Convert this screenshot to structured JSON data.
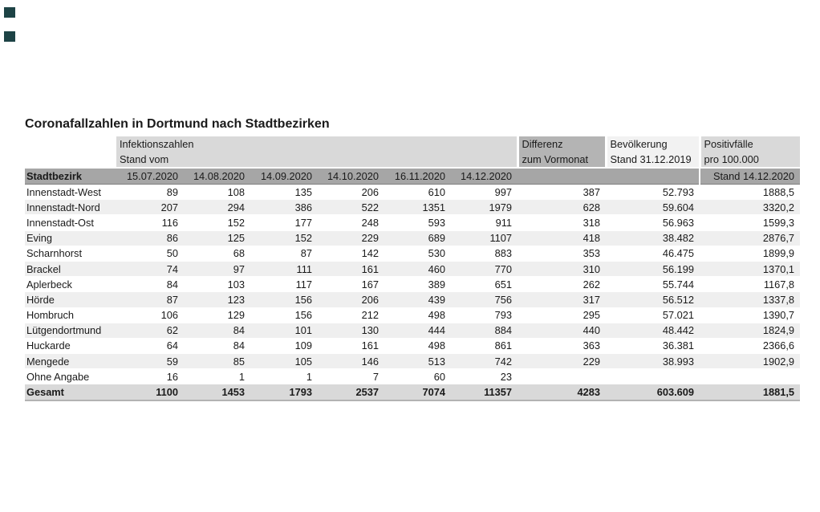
{
  "title": "Coronafallzahlen in Dortmund nach Stadtbezirken",
  "decor": {
    "corner_squares_color": "#1d4345"
  },
  "colors": {
    "band_light": "#d9d9d9",
    "band_diff": "#b4b4b4",
    "band_pop": "#f2f2f2",
    "header_row": "#a6a6a6",
    "stripe": "#efefef",
    "total_bg": "#d9d9d9"
  },
  "table": {
    "groups": {
      "infection_line1": "Infektionszahlen",
      "infection_line2": "Stand vom",
      "diff_line1": "Differenz",
      "diff_line2": "zum Vormonat",
      "pop_line1": "Bevölkerung",
      "pop_line2": "Stand 31.12.2019",
      "pos_line1": "Positivfälle",
      "pos_line2": "pro 100.000"
    },
    "header": {
      "district": "Stadtbezirk",
      "dates": [
        "15.07.2020",
        "14.08.2020",
        "14.09.2020",
        "14.10.2020",
        "16.11.2020",
        "14.12.2020"
      ],
      "pos_stand": "Stand 14.12.2020"
    },
    "rows": [
      {
        "district": "Innenstadt-West",
        "values": [
          "89",
          "108",
          "135",
          "206",
          "610",
          "997"
        ],
        "diff": "387",
        "pop": "52.793",
        "per100k": "1888,5"
      },
      {
        "district": "Innenstadt-Nord",
        "values": [
          "207",
          "294",
          "386",
          "522",
          "1351",
          "1979"
        ],
        "diff": "628",
        "pop": "59.604",
        "per100k": "3320,2"
      },
      {
        "district": "Innenstadt-Ost",
        "values": [
          "116",
          "152",
          "177",
          "248",
          "593",
          "911"
        ],
        "diff": "318",
        "pop": "56.963",
        "per100k": "1599,3"
      },
      {
        "district": "Eving",
        "values": [
          "86",
          "125",
          "152",
          "229",
          "689",
          "1107"
        ],
        "diff": "418",
        "pop": "38.482",
        "per100k": "2876,7"
      },
      {
        "district": "Scharnhorst",
        "values": [
          "50",
          "68",
          "87",
          "142",
          "530",
          "883"
        ],
        "diff": "353",
        "pop": "46.475",
        "per100k": "1899,9"
      },
      {
        "district": "Brackel",
        "values": [
          "74",
          "97",
          "111",
          "161",
          "460",
          "770"
        ],
        "diff": "310",
        "pop": "56.199",
        "per100k": "1370,1"
      },
      {
        "district": "Aplerbeck",
        "values": [
          "84",
          "103",
          "117",
          "167",
          "389",
          "651"
        ],
        "diff": "262",
        "pop": "55.744",
        "per100k": "1167,8"
      },
      {
        "district": "Hörde",
        "values": [
          "87",
          "123",
          "156",
          "206",
          "439",
          "756"
        ],
        "diff": "317",
        "pop": "56.512",
        "per100k": "1337,8"
      },
      {
        "district": "Hombruch",
        "values": [
          "106",
          "129",
          "156",
          "212",
          "498",
          "793"
        ],
        "diff": "295",
        "pop": "57.021",
        "per100k": "1390,7"
      },
      {
        "district": "Lütgendortmund",
        "values": [
          "62",
          "84",
          "101",
          "130",
          "444",
          "884"
        ],
        "diff": "440",
        "pop": "48.442",
        "per100k": "1824,9"
      },
      {
        "district": "Huckarde",
        "values": [
          "64",
          "84",
          "109",
          "161",
          "498",
          "861"
        ],
        "diff": "363",
        "pop": "36.381",
        "per100k": "2366,6"
      },
      {
        "district": "Mengede",
        "values": [
          "59",
          "85",
          "105",
          "146",
          "513",
          "742"
        ],
        "diff": "229",
        "pop": "38.993",
        "per100k": "1902,9"
      },
      {
        "district": "Ohne Angabe",
        "values": [
          "16",
          "1",
          "1",
          "7",
          "60",
          "23"
        ],
        "diff": "",
        "pop": "",
        "per100k": ""
      }
    ],
    "total": {
      "district": "Gesamt",
      "values": [
        "1100",
        "1453",
        "1793",
        "2537",
        "7074",
        "11357"
      ],
      "diff": "4283",
      "pop": "603.609",
      "per100k": "1881,5"
    }
  }
}
